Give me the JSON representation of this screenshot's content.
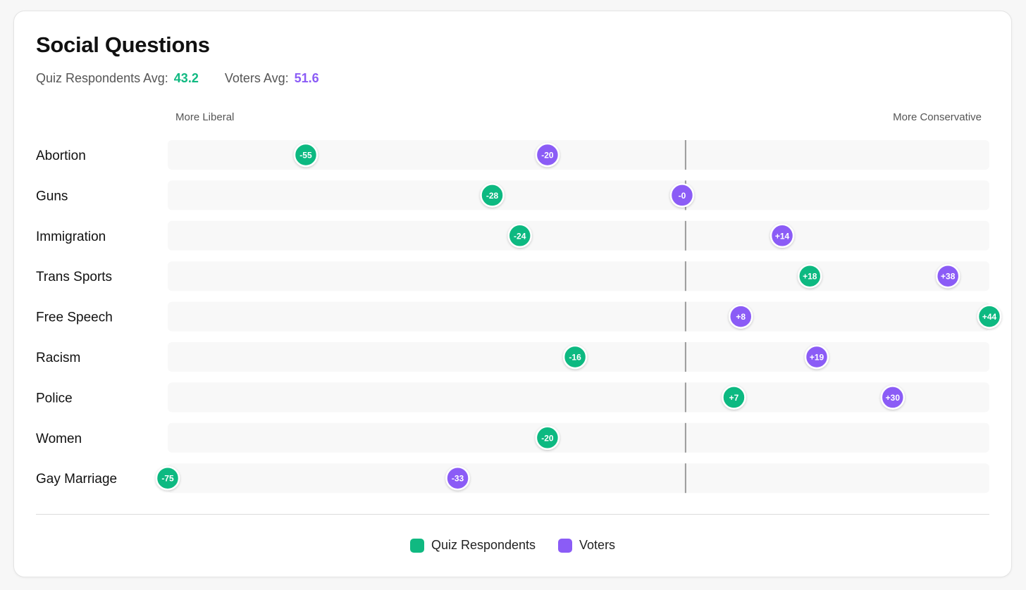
{
  "colors": {
    "quiz": "#10b981",
    "voters": "#8b5cf6"
  },
  "header": {
    "title": "Social Questions",
    "quiz_avg_label": "Quiz Respondents Avg:",
    "quiz_avg_value": "43.2",
    "voters_avg_label": "Voters Avg:",
    "voters_avg_value": "51.6"
  },
  "axis": {
    "left_label": "More Liberal",
    "right_label": "More Conservative"
  },
  "legend": {
    "quiz": "Quiz Respondents",
    "voters": "Voters"
  },
  "chart_data": {
    "type": "scatter",
    "title": "Social Questions",
    "xlim": [
      -75,
      44
    ],
    "center": 0,
    "categories": [
      "Abortion",
      "Guns",
      "Immigration",
      "Trans Sports",
      "Free Speech",
      "Racism",
      "Police",
      "Women",
      "Gay Marriage"
    ],
    "series": [
      {
        "name": "Quiz Respondents",
        "key": "quiz",
        "values": [
          -55,
          -28,
          -24,
          18,
          44,
          -16,
          7,
          -20,
          -75
        ],
        "labels": [
          "-55",
          "-28",
          "-24",
          "+18",
          "+44",
          "-16",
          "+7",
          "-20",
          "-75"
        ]
      },
      {
        "name": "Voters",
        "key": "voters",
        "values": [
          -20,
          -0.5,
          14,
          38,
          8,
          19,
          30,
          null,
          -33
        ],
        "labels": [
          "-20",
          "-0",
          "+14",
          "+38",
          "+8",
          "+19",
          "+30",
          null,
          "-33"
        ]
      }
    ]
  }
}
